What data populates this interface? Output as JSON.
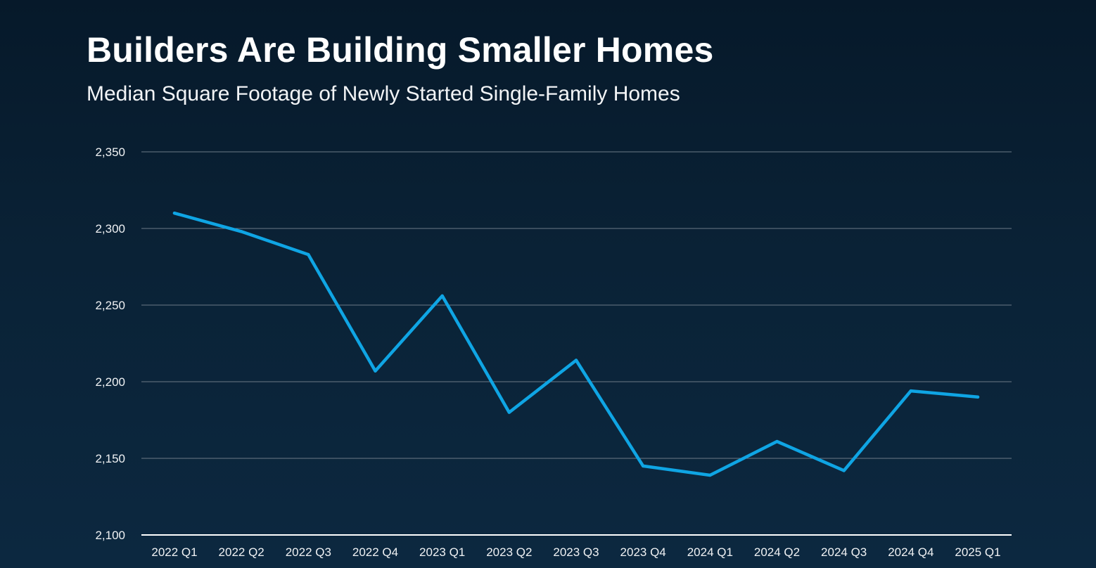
{
  "header": {
    "title": "Builders Are Building Smaller Homes",
    "subtitle": "Median Square Footage of Newly Started Single-Family Homes"
  },
  "chart_data": {
    "type": "line",
    "title": "Builders Are Building Smaller Homes",
    "subtitle": "Median Square Footage of Newly Started Single-Family Homes",
    "xlabel": "",
    "ylabel": "",
    "categories": [
      "2022 Q1",
      "2022 Q2",
      "2022 Q3",
      "2022 Q4",
      "2023 Q1",
      "2023 Q2",
      "2023 Q3",
      "2023 Q4",
      "2024 Q1",
      "2024 Q2",
      "2024 Q3",
      "2024 Q4",
      "2025 Q1"
    ],
    "series": [
      {
        "values": [
          2310,
          2298,
          2283,
          2207,
          2256,
          2180,
          2214,
          2145,
          2139,
          2161,
          2142,
          2194,
          2190
        ]
      }
    ],
    "ylim": [
      2100,
      2350
    ],
    "yticks": [
      2100,
      2150,
      2200,
      2250,
      2300,
      2350
    ],
    "ytick_labels": [
      "2,100",
      "2,150",
      "2,200",
      "2,250",
      "2,300",
      "2,350"
    ],
    "grid": true,
    "legend": "none",
    "colors": {
      "line": "#0fa5e4",
      "grid": "#6c7986",
      "axis": "#ffffff",
      "text": "#f0f2f4"
    }
  }
}
